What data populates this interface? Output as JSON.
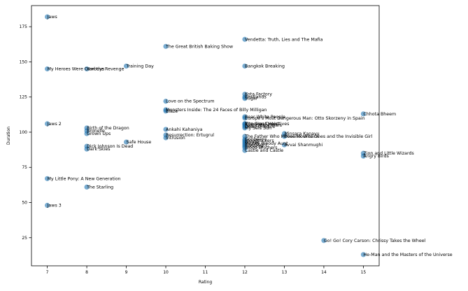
{
  "chart_data": {
    "type": "scatter",
    "title": "",
    "xlabel": "Rating",
    "ylabel": "Duration",
    "xlim": [
      6.6,
      15.4
    ],
    "ylim": [
      5,
      190
    ],
    "xticks": [
      7,
      8,
      9,
      10,
      11,
      12,
      13,
      14,
      15
    ],
    "yticks": [
      25,
      50,
      75,
      100,
      125,
      150,
      175
    ],
    "marker_color": "#1f77b4",
    "marker_alpha": 0.6,
    "grid": false,
    "points": [
      {
        "x": 7,
        "y": 182,
        "label": "Jaws"
      },
      {
        "x": 12,
        "y": 166,
        "label": "Vendetta: Truth, Lies and The Mafia"
      },
      {
        "x": 10,
        "y": 161,
        "label": "The Great British Baking Show"
      },
      {
        "x": 9,
        "y": 147,
        "label": "Training Day"
      },
      {
        "x": 12,
        "y": 147,
        "label": "Bangkok Breaking"
      },
      {
        "x": 7,
        "y": 145,
        "label": "My Heroes Were Cowboys"
      },
      {
        "x": 8,
        "y": 145,
        "label": "Kon the Revenge"
      },
      {
        "x": 12,
        "y": 127,
        "label": "Kota Factory"
      },
      {
        "x": 12,
        "y": 125,
        "label": "Bestlands"
      },
      {
        "x": 12,
        "y": 124,
        "label": "Sugar"
      },
      {
        "x": 10,
        "y": 122,
        "label": "Love on the Spectrum"
      },
      {
        "x": 10,
        "y": 116,
        "label": "Monsters Inside: The 24 Faces of Billy Milligan"
      },
      {
        "x": 10,
        "y": 115,
        "label": "Blaze"
      },
      {
        "x": 15,
        "y": 113,
        "label": "Chhota Bheem"
      },
      {
        "x": 12,
        "y": 111,
        "label": "Bear White People"
      },
      {
        "x": 12,
        "y": 110,
        "label": "Europe's Most Dangerous Man: Otto Skorzeny in Spain"
      },
      {
        "x": 12,
        "y": 106,
        "label": "The Great Heist"
      },
      {
        "x": 12,
        "y": 106,
        "label": "Intrusion Detectives"
      },
      {
        "x": 12,
        "y": 105,
        "label": "Real Estate Wars"
      },
      {
        "x": 12,
        "y": 104,
        "label": "Dead Orleans"
      },
      {
        "x": 12,
        "y": 103,
        "label": "My Seis Sun"
      },
      {
        "x": 7,
        "y": 106,
        "label": "Jaws 2"
      },
      {
        "x": 8,
        "y": 103,
        "label": "Birth of the Dragon"
      },
      {
        "x": 8,
        "y": 101,
        "label": "Bronelle"
      },
      {
        "x": 8,
        "y": 99,
        "label": "Grown Ups"
      },
      {
        "x": 10,
        "y": 102,
        "label": "Ankahi Kahaniya"
      },
      {
        "x": 10,
        "y": 98,
        "label": "Resurrection: Ertugrul"
      },
      {
        "x": 10,
        "y": 96,
        "label": "Intrusion"
      },
      {
        "x": 13,
        "y": 99,
        "label": "Minsara Kanavu"
      },
      {
        "x": 13,
        "y": 97,
        "label": "Phoenix Wild Ones and the Invisible Girl"
      },
      {
        "x": 12,
        "y": 97,
        "label": "The Father Who Moves Mountains"
      },
      {
        "x": 12,
        "y": 95,
        "label": "Gonbeeru"
      },
      {
        "x": 12,
        "y": 94,
        "label": "Bloodsuckers"
      },
      {
        "x": 12,
        "y": 93,
        "label": "Bonga"
      },
      {
        "x": 12,
        "y": 92,
        "label": "Mighty Bloody Aunt"
      },
      {
        "x": 12,
        "y": 91,
        "label": "Bloodfight"
      },
      {
        "x": 12,
        "y": 90,
        "label": "Rebecca"
      },
      {
        "x": 12,
        "y": 89,
        "label": "Blood Brothers"
      },
      {
        "x": 13,
        "y": 91,
        "label": "Avvai Shanmughi"
      },
      {
        "x": 9,
        "y": 93,
        "label": "Safe House"
      },
      {
        "x": 8,
        "y": 90,
        "label": "Dick Johnson Is Dead"
      },
      {
        "x": 8,
        "y": 88,
        "label": "Dark Skies"
      },
      {
        "x": 12,
        "y": 87,
        "label": "Castle and Castle"
      },
      {
        "x": 15,
        "y": 85,
        "label": "Zion and Little Wizards"
      },
      {
        "x": 15,
        "y": 83,
        "label": "Angry Birds"
      },
      {
        "x": 7,
        "y": 67,
        "label": "My Little Pony: A New Generation"
      },
      {
        "x": 8,
        "y": 61,
        "label": "The Starling"
      },
      {
        "x": 7,
        "y": 48,
        "label": "Jaws 3"
      },
      {
        "x": 14,
        "y": 23,
        "label": "Go! Go! Cory Carson: Chrissy Takes the Wheel"
      },
      {
        "x": 15,
        "y": 13,
        "label": "He-Man and the Masters of the Universe"
      }
    ]
  }
}
